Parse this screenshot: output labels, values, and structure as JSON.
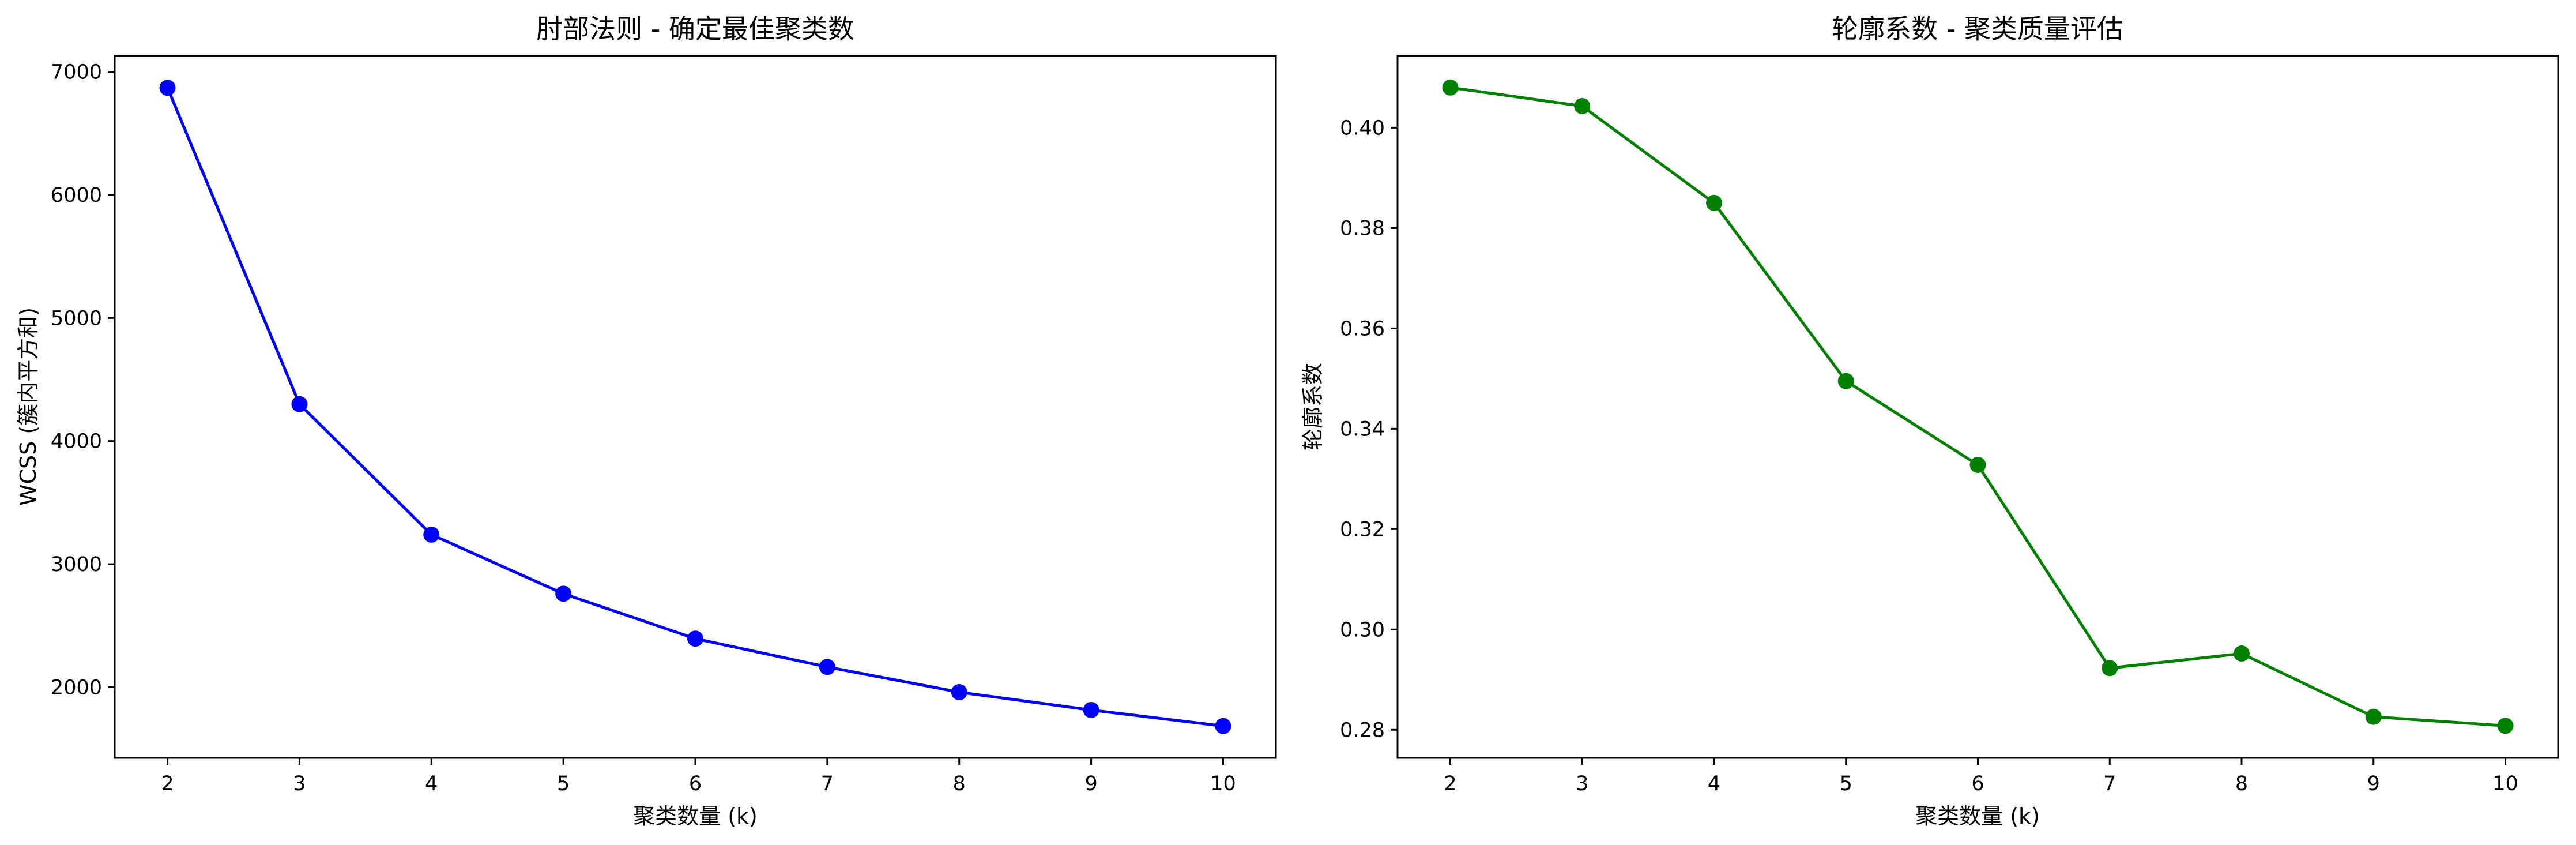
{
  "chart_data": [
    {
      "type": "line",
      "title": "肘部法则 - 确定最佳聚类数",
      "xlabel": "聚类数量 (k)",
      "ylabel": "WCSS (簇内平方和)",
      "x": [
        2,
        3,
        4,
        5,
        6,
        7,
        8,
        9,
        10
      ],
      "series": [
        {
          "values": [
            6870,
            4300,
            3240,
            2760,
            2395,
            2165,
            1960,
            1815,
            1685
          ],
          "color": "#0000ff",
          "marker": "circle"
        }
      ],
      "xlim": [
        1.6,
        10.4
      ],
      "ylim": [
        1426,
        7129
      ],
      "xticks": [
        "2",
        "3",
        "4",
        "5",
        "6",
        "7",
        "8",
        "9",
        "10"
      ],
      "yticks": [
        "2000",
        "3000",
        "4000",
        "5000",
        "6000",
        "7000"
      ],
      "grid": false,
      "legend": "none"
    },
    {
      "type": "line",
      "title": "轮廓系数 - 聚类质量评估",
      "xlabel": "聚类数量 (k)",
      "ylabel": "轮廓系数",
      "x": [
        2,
        3,
        4,
        5,
        6,
        7,
        8,
        9,
        10
      ],
      "series": [
        {
          "values": [
            0.408,
            0.4043,
            0.385,
            0.3495,
            0.3328,
            0.2923,
            0.2952,
            0.2826,
            0.2808
          ],
          "color": "#008000",
          "marker": "circle"
        }
      ],
      "xlim": [
        1.6,
        10.4
      ],
      "ylim": [
        0.2744,
        0.4143
      ],
      "xticks": [
        "2",
        "3",
        "4",
        "5",
        "6",
        "7",
        "8",
        "9",
        "10"
      ],
      "yticks": [
        "0.28",
        "0.30",
        "0.32",
        "0.34",
        "0.36",
        "0.38",
        "0.40"
      ],
      "grid": false,
      "legend": "none"
    }
  ]
}
